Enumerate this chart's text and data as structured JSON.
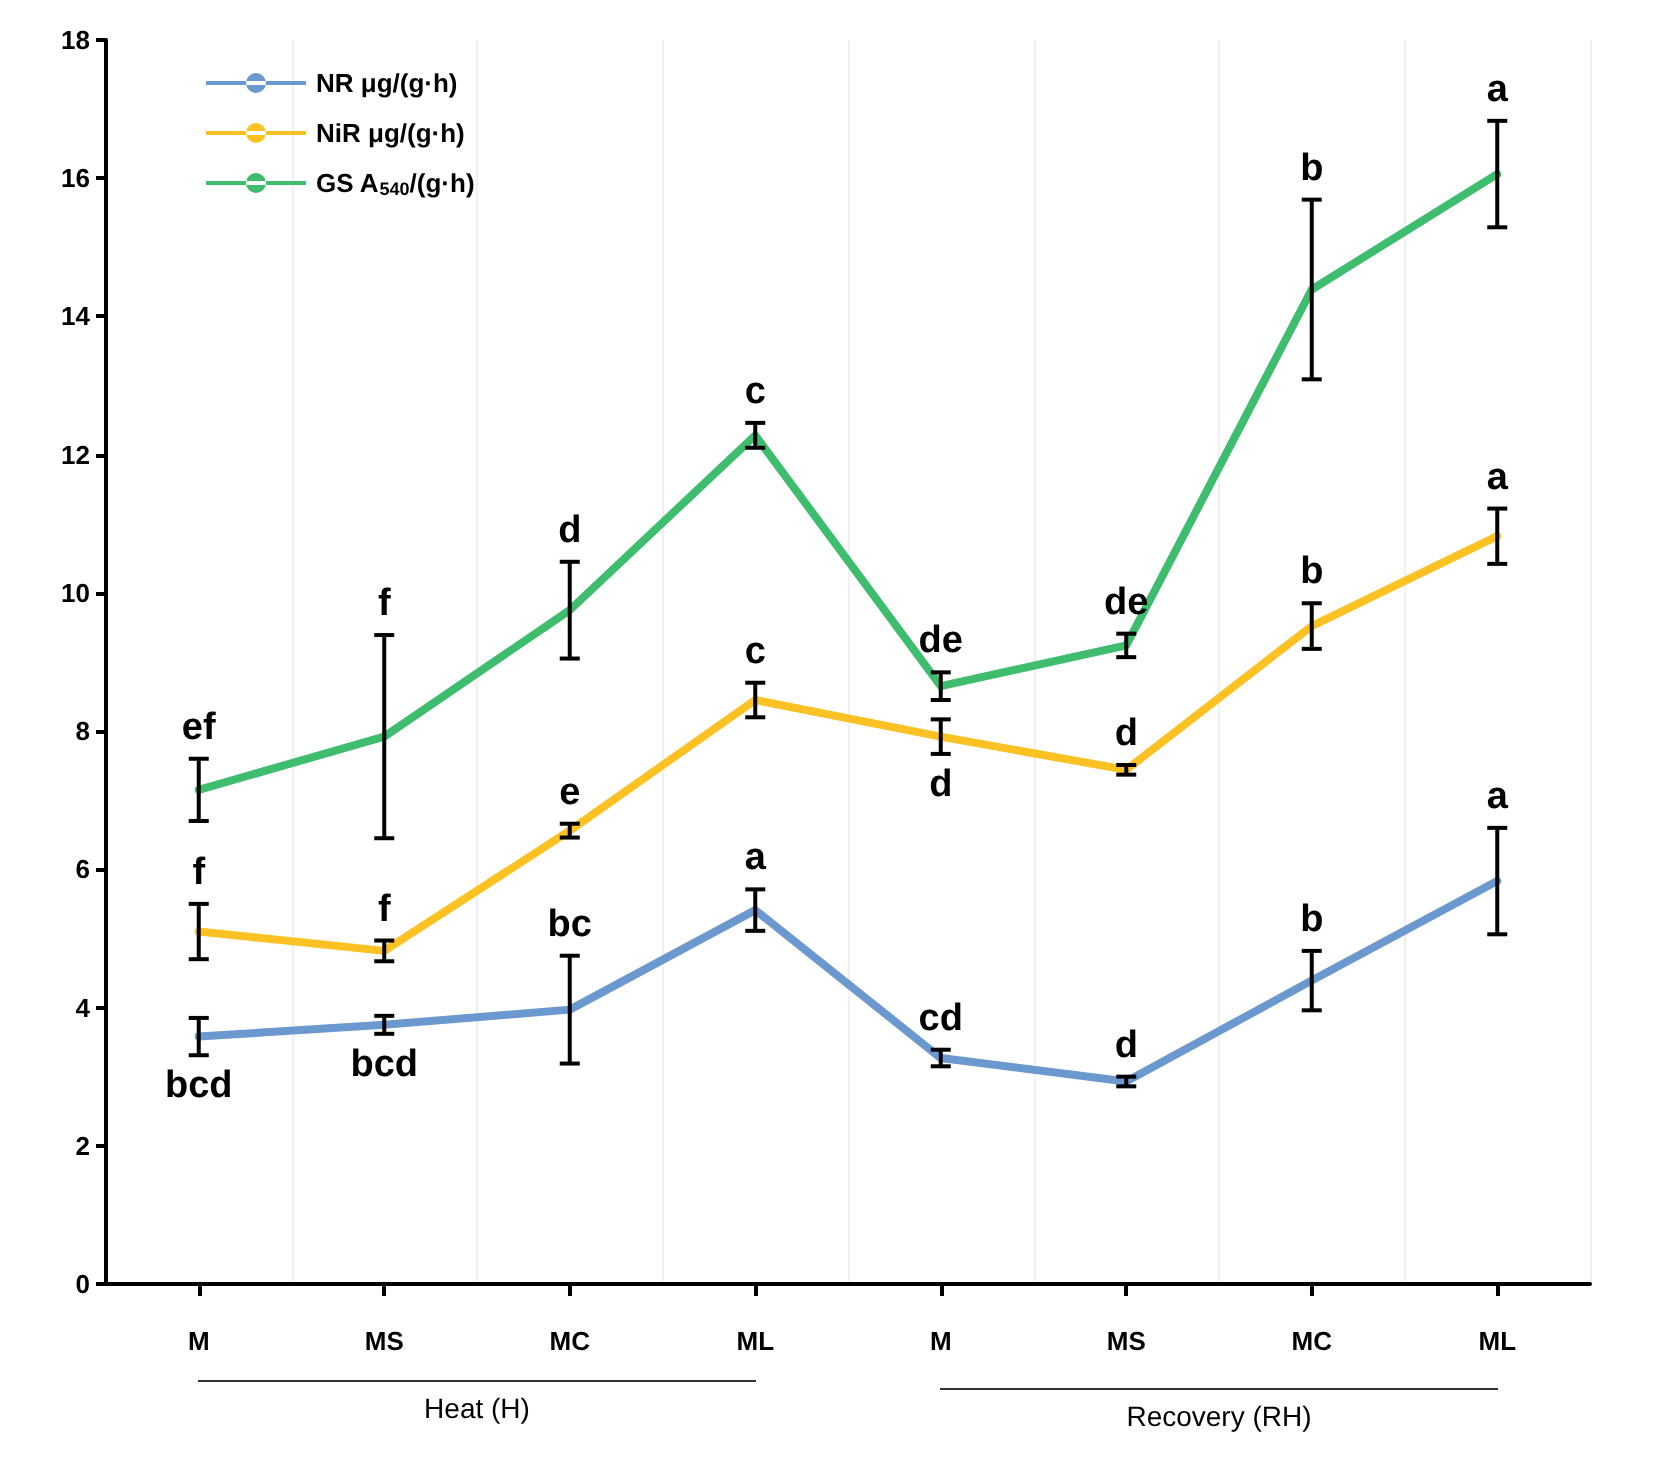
{
  "chart_data": {
    "type": "line",
    "categories": [
      "M",
      "MS",
      "MC",
      "ML",
      "M",
      "MS",
      "MC",
      "ML"
    ],
    "series": [
      {
        "name": "NR μg/(g·h)",
        "color": "#6b98cf",
        "values": [
          3.58,
          3.75,
          3.97,
          5.41,
          3.27,
          2.93,
          4.39,
          5.83
        ],
        "errors": [
          0.27,
          0.13,
          0.78,
          0.3,
          0.12,
          0.07,
          0.43,
          0.77
        ],
        "value_labels": [
          "bcd",
          "bcd",
          "bc",
          "a",
          "cd",
          "d",
          "b",
          "a"
        ]
      },
      {
        "name": "NiR μg/(g·h)",
        "color": "#fcc223",
        "values": [
          5.1,
          4.82,
          6.56,
          8.45,
          7.92,
          7.44,
          9.52,
          10.82
        ],
        "errors": [
          0.4,
          0.15,
          0.1,
          0.25,
          0.25,
          0.07,
          0.33,
          0.4
        ],
        "value_labels": [
          "f",
          "f",
          "e",
          "c",
          "d",
          "d",
          "b",
          "a"
        ]
      },
      {
        "name": "GS A$_{540}$/(g·h)",
        "color": "#3dbd6d",
        "values": [
          7.15,
          7.92,
          9.75,
          12.28,
          8.65,
          9.24,
          14.39,
          16.06
        ],
        "errors": [
          0.45,
          1.47,
          0.7,
          0.18,
          0.2,
          0.17,
          1.3,
          0.77
        ],
        "value_labels": [
          "ef",
          "f",
          "d",
          "c",
          "de",
          "de",
          "b",
          "a"
        ]
      }
    ],
    "ylim": [
      0,
      18
    ],
    "yticks": [
      0,
      2,
      4,
      6,
      8,
      10,
      12,
      14,
      16,
      18
    ],
    "grid": "x",
    "legend": "top left",
    "line_style": "solid",
    "annotations": [
      "Heat (H)",
      "Recovery (RH)"
    ]
  }
}
